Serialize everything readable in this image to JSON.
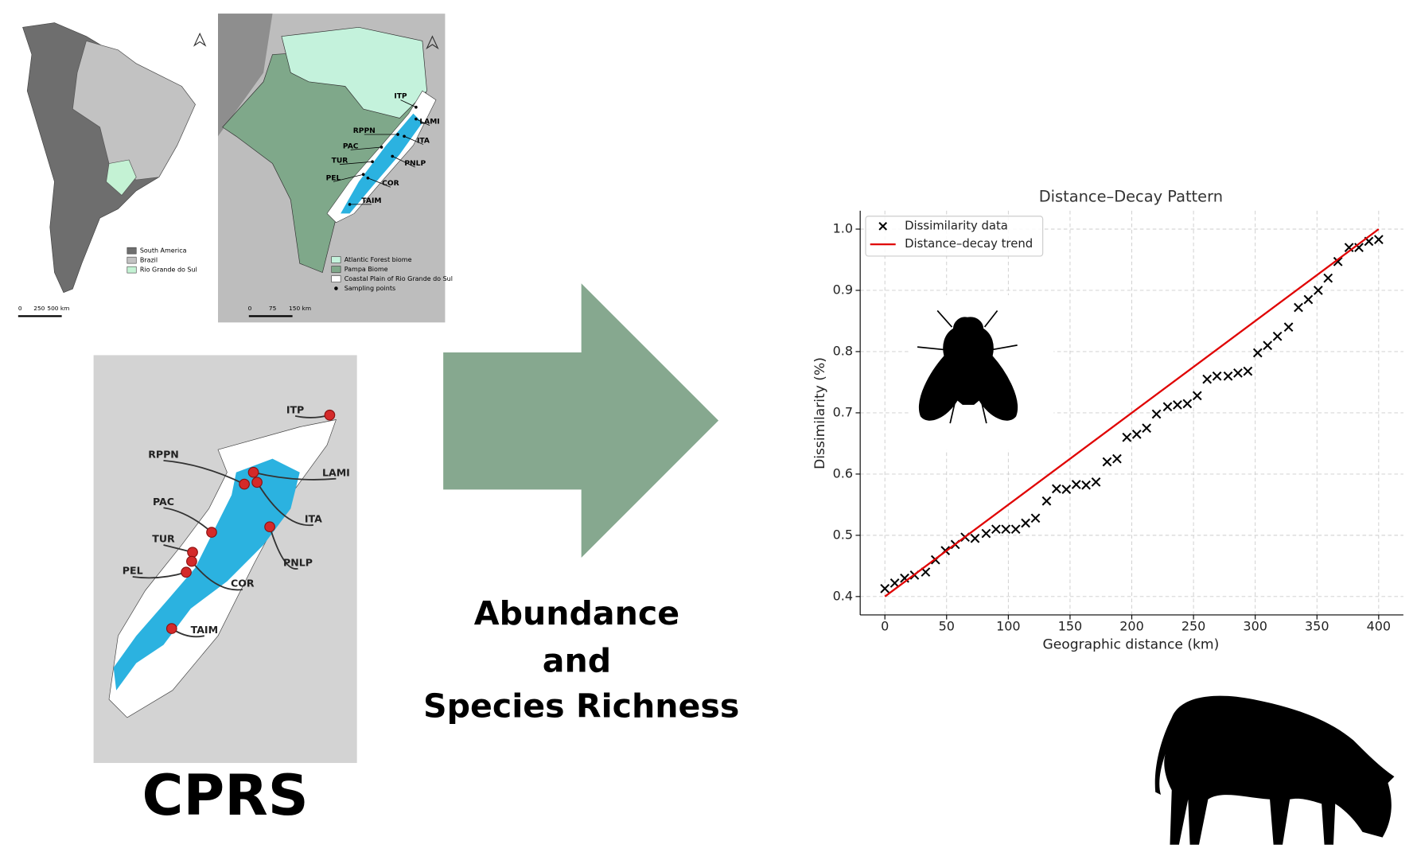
{
  "map_sa": {
    "legend": [
      {
        "label": "South America",
        "color": "#6e6e6e"
      },
      {
        "label": "Brazil",
        "color": "#c2c2c2"
      },
      {
        "label": "Rio Grande do Sul",
        "color": "#c4f2d4"
      }
    ],
    "scale": [
      "0",
      "250",
      "500 km"
    ]
  },
  "map_rs": {
    "legend": [
      {
        "label": "Atlantic Forest biome",
        "color": "#c4f2dc"
      },
      {
        "label": "Pampa Biome",
        "color": "#7fa88a"
      },
      {
        "label": "Coastal Plain of Rio Grande do Sul",
        "color": "#ffffff"
      },
      {
        "label": "Sampling points",
        "color": "#000000"
      }
    ],
    "scale": [
      "0",
      "75",
      "150 km"
    ]
  },
  "sites": [
    "ITP",
    "LAMI",
    "RPPN",
    "ITA",
    "PAC",
    "TUR",
    "PNLP",
    "PEL",
    "COR",
    "TAIM"
  ],
  "cprs_label": "CPRS",
  "arrow_text": [
    "Abundance",
    "and",
    "Species Richness"
  ],
  "chart_data": {
    "type": "scatter",
    "title": "Distance–Decay Pattern",
    "x_label": "Geographic distance (km)",
    "y_label": "Dissimilarity (%)",
    "series": [
      {
        "name": "Dissimilarity data",
        "color": "#000000",
        "marker": "x",
        "x": [
          0,
          8,
          16,
          24,
          33,
          41,
          49,
          57,
          65,
          73,
          82,
          90,
          98,
          106,
          114,
          122,
          131,
          139,
          147,
          155,
          163,
          171,
          180,
          188,
          196,
          204,
          212,
          220,
          229,
          237,
          245,
          253,
          261,
          269,
          278,
          286,
          294,
          302,
          310,
          318,
          327,
          335,
          343,
          351,
          359,
          367,
          376,
          384,
          392,
          400
        ],
        "values": [
          0.413,
          0.422,
          0.43,
          0.435,
          0.44,
          0.46,
          0.475,
          0.485,
          0.497,
          0.495,
          0.503,
          0.51,
          0.51,
          0.51,
          0.52,
          0.528,
          0.556,
          0.576,
          0.575,
          0.583,
          0.582,
          0.587,
          0.62,
          0.625,
          0.66,
          0.665,
          0.675,
          0.698,
          0.71,
          0.713,
          0.715,
          0.728,
          0.755,
          0.76,
          0.76,
          0.765,
          0.768,
          0.798,
          0.81,
          0.825,
          0.84,
          0.872,
          0.885,
          0.9,
          0.92,
          0.947,
          0.97,
          0.97,
          0.98,
          0.983
        ]
      },
      {
        "name": "Distance–decay trend",
        "color": "#e00000",
        "marker": "line",
        "x": [
          0,
          400
        ],
        "values": [
          0.4,
          1.0
        ]
      }
    ],
    "xlim": [
      -20,
      420
    ],
    "ylim": [
      0.37,
      1.03
    ],
    "xticks": [
      0,
      50,
      100,
      150,
      200,
      250,
      300,
      350,
      400
    ],
    "yticks": [
      0.4,
      0.5,
      0.6,
      0.7,
      0.8,
      0.9,
      {
        "value": 1,
        "label": "1.0"
      }
    ],
    "grid": true,
    "legend": "upper left"
  }
}
